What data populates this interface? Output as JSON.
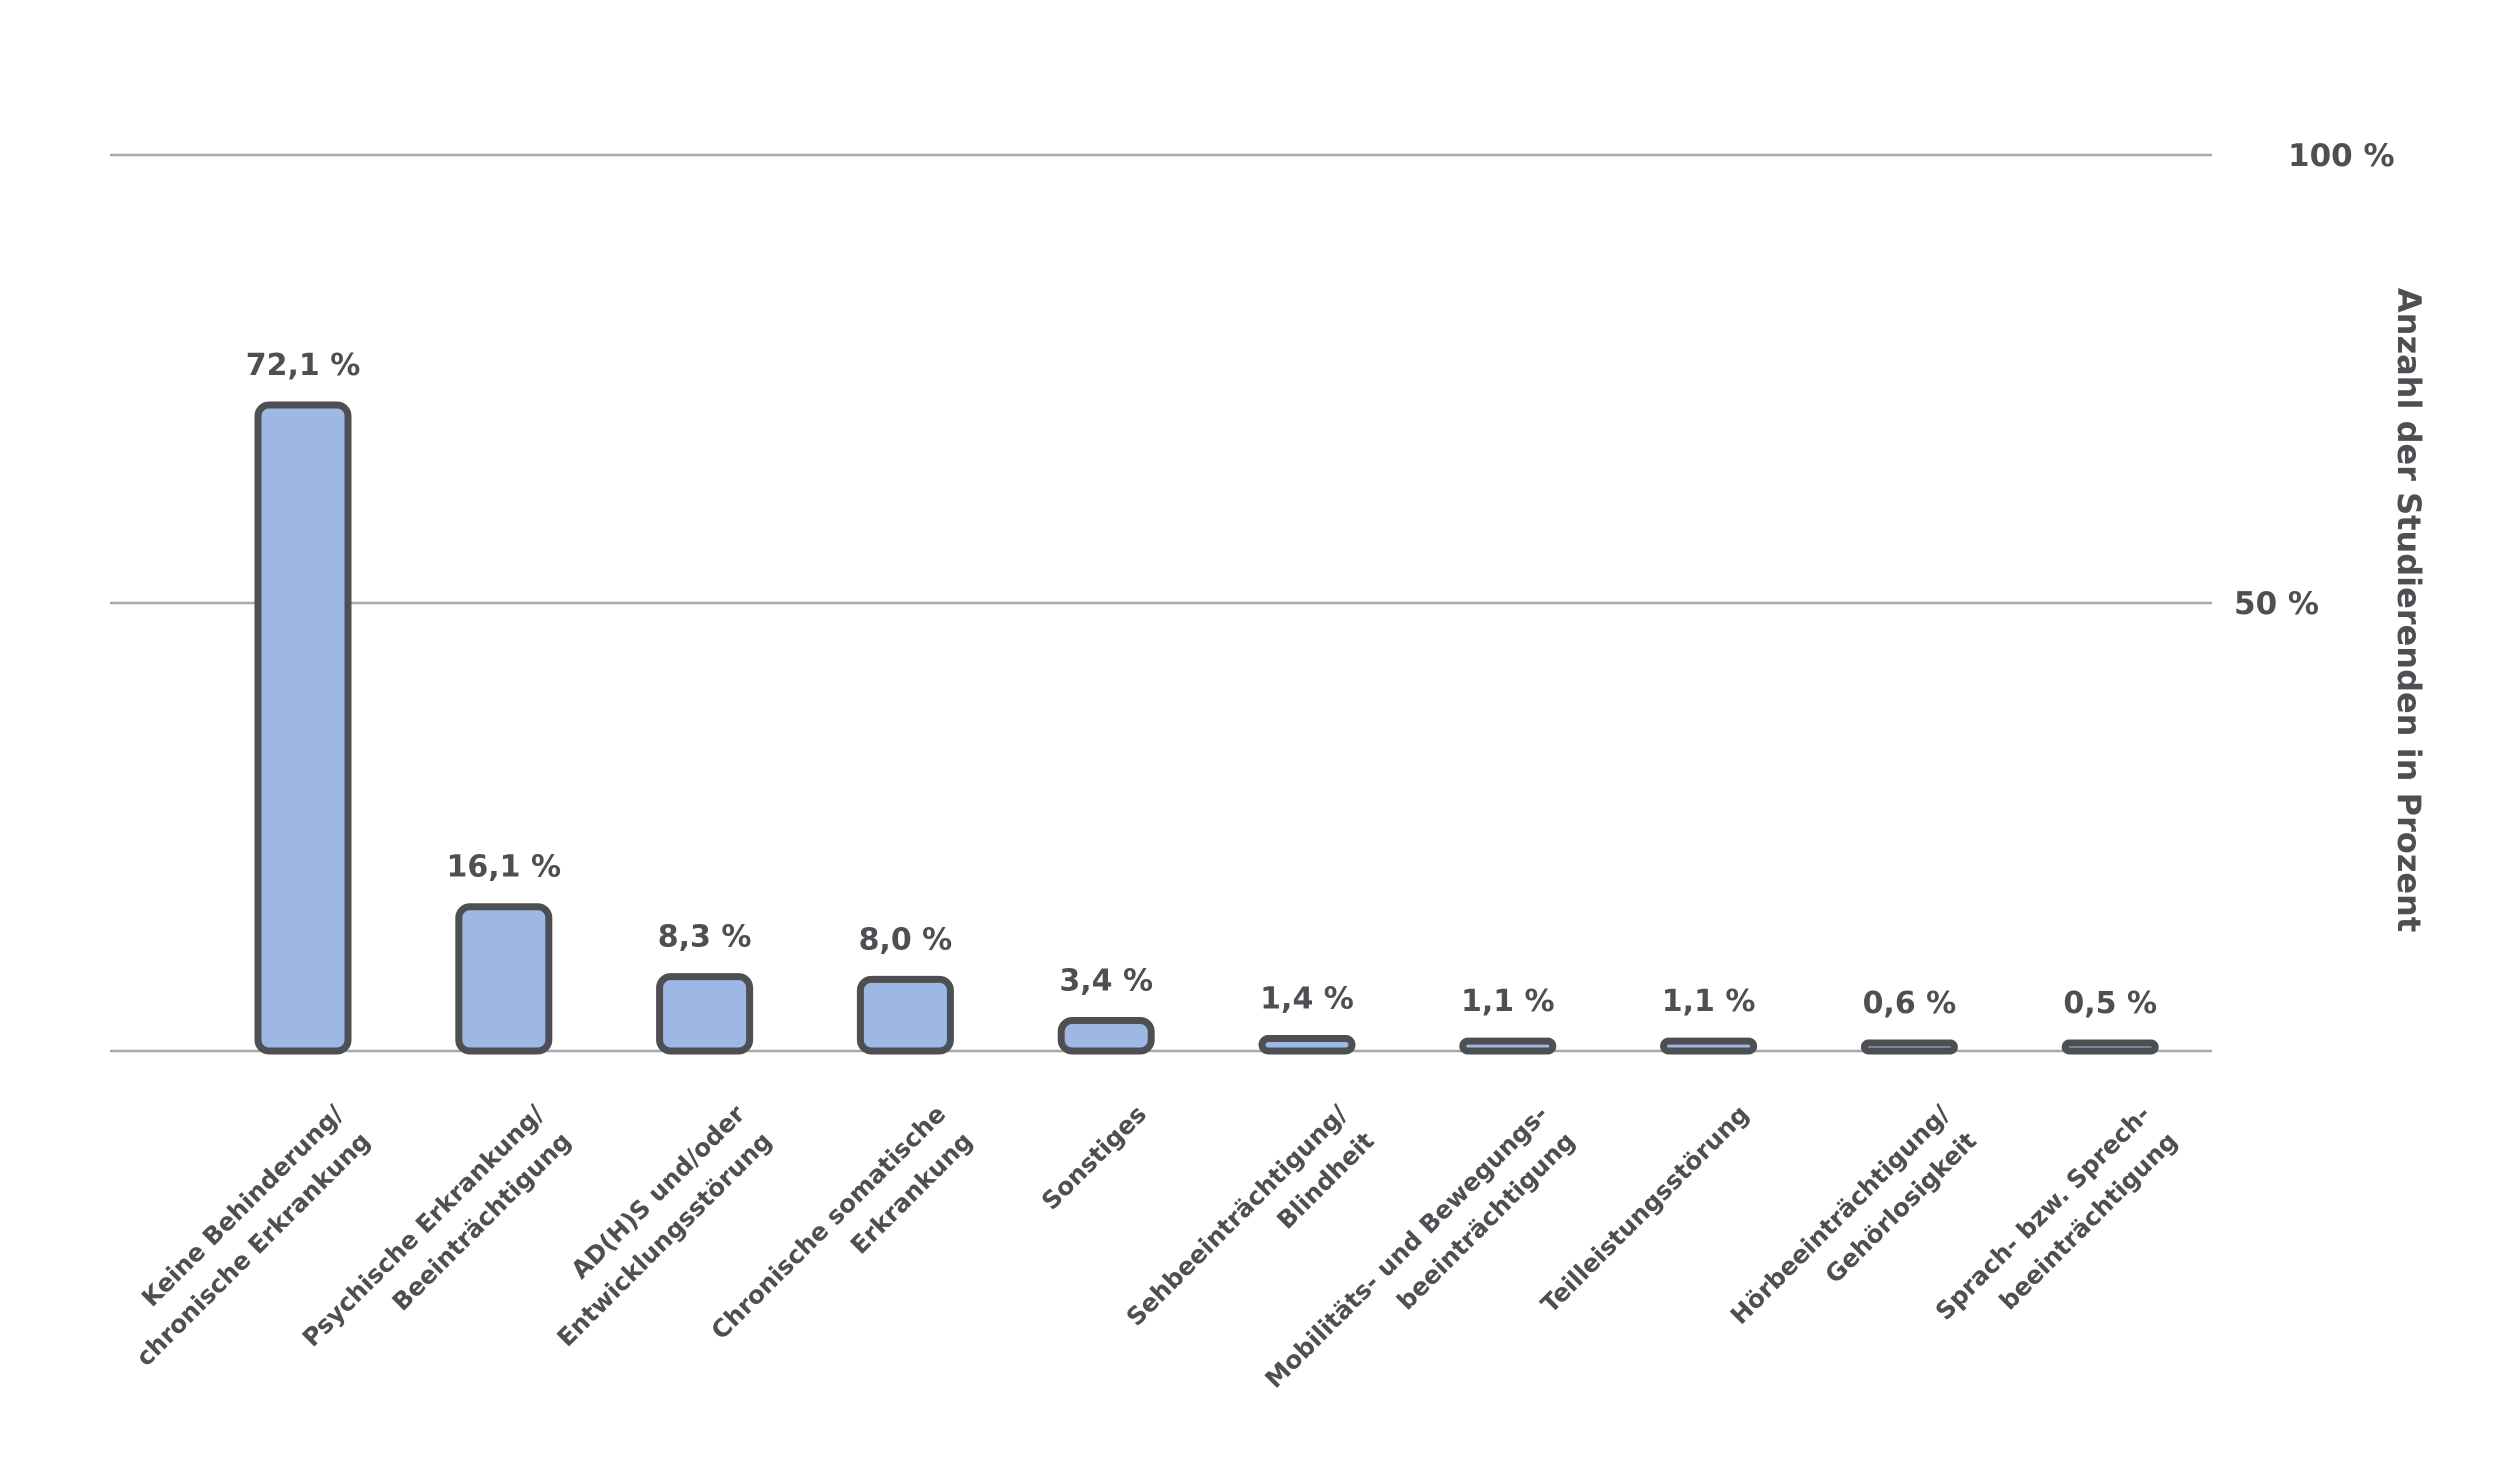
{
  "chart_data": {
    "type": "bar",
    "ylabel": "Anzahl der Studierenden in Prozent",
    "ylim": [
      0,
      100
    ],
    "yticks": [
      {
        "value": 100,
        "label": "100 %"
      },
      {
        "value": 50,
        "label": "50 %"
      }
    ],
    "y_axis_position": "right",
    "grid": true,
    "categories": [
      [
        "Keine Behinderung/",
        "chronische Erkrankung"
      ],
      [
        "Psychische Erkrankung/",
        "Beeinträchtigung"
      ],
      [
        "AD(H)S und/oder",
        "Entwicklungsstörung"
      ],
      [
        "Chronische somatische",
        "Erkrankung"
      ],
      [
        "Sonstiges"
      ],
      [
        "Sehbeeinträchtigung/",
        "Blindheit"
      ],
      [
        "Mobilitäts- und Bewegungs-",
        "beeinträchtigung"
      ],
      [
        "Teilleistungsstörung"
      ],
      [
        "Hörbeeinträchtigung/",
        "Gehörlosigkeit"
      ],
      [
        "Sprach- bzw. Sprech-",
        "beeinträchtigung"
      ]
    ],
    "values": [
      72.1,
      16.1,
      8.3,
      8.0,
      3.4,
      1.4,
      1.1,
      1.1,
      0.6,
      0.5
    ],
    "value_labels": [
      "72,1 %",
      "16,1 %",
      "8,3 %",
      "8,0 %",
      "3,4 %",
      "1,4 %",
      "1,1 %",
      "1,1 %",
      "0,6 %",
      "0,5 %"
    ],
    "colors": {
      "bar_fill": "#9db8e5",
      "bar_stroke": "#4d4f53",
      "grid": "#a8a8a8",
      "text": "#4d4f53"
    }
  }
}
